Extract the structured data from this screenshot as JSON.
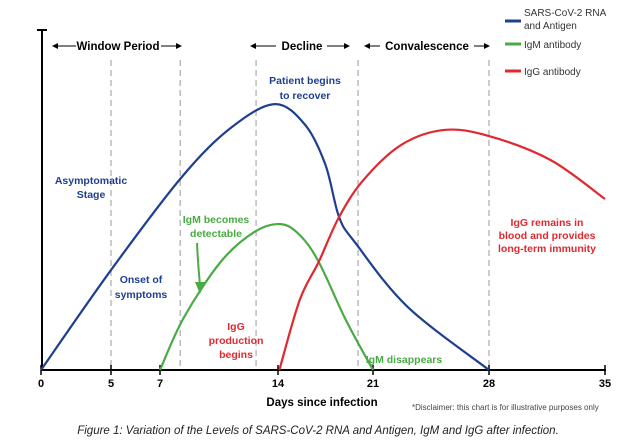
{
  "chart_data": {
    "type": "line",
    "xlabel": "Days since infection",
    "ylabel": "",
    "x_ticks": [
      0,
      5,
      7,
      14,
      21,
      28,
      35
    ],
    "xlim": [
      0,
      35
    ],
    "ylim": [
      0,
      100
    ],
    "grid": false,
    "legend_placement": "top-right",
    "colors": {
      "rna": "#1f3f8f",
      "igm": "#4aaa45",
      "igg": "#e0282e"
    },
    "series": [
      {
        "key": "rna",
        "name": "SARS-CoV-2 RNA and Antigen",
        "points": [
          [
            0,
            0
          ],
          [
            5,
            29.4
          ],
          [
            8.3,
            56.8
          ],
          [
            11.2,
            71.2
          ],
          [
            13.8,
            78.2
          ],
          [
            16.0,
            72.1
          ],
          [
            17.5,
            60.3
          ],
          [
            18.5,
            45
          ],
          [
            19.7,
            37.4
          ],
          [
            23.1,
            18.5
          ],
          [
            28,
            0
          ]
        ]
      },
      {
        "key": "igm",
        "name": "IgM antibody",
        "points": [
          [
            7,
            0
          ],
          [
            8.4,
            15.3
          ],
          [
            10.6,
            31.8
          ],
          [
            12.6,
            40.6
          ],
          [
            14.2,
            42.9
          ],
          [
            15.6,
            39.7
          ],
          [
            17.0,
            31.8
          ],
          [
            19.0,
            14.7
          ],
          [
            21,
            0
          ]
        ]
      },
      {
        "key": "igg",
        "name": "IgG antibody",
        "points": [
          [
            14.1,
            0
          ],
          [
            15.6,
            20.6
          ],
          [
            17.0,
            31.8
          ],
          [
            18.5,
            45
          ],
          [
            20.3,
            55.9
          ],
          [
            22.7,
            66.2
          ],
          [
            25.3,
            70.6
          ],
          [
            28,
            68.8
          ],
          [
            31.7,
            61.8
          ],
          [
            35,
            50.3
          ]
        ]
      }
    ],
    "period_markers_days": [
      5,
      8.2,
      12.7,
      19.9,
      28
    ],
    "periods": [
      {
        "label": "Window Period"
      },
      {
        "label": "Decline"
      },
      {
        "label": "Convalescence"
      }
    ],
    "annotations": {
      "patient_recover": [
        "Patient begins",
        "to recover"
      ],
      "asymptomatic": [
        "Asymptomatic",
        "Stage"
      ],
      "onset": [
        "Onset of",
        "symptoms"
      ],
      "igm_detectable": [
        "IgM becomes",
        "detectable"
      ],
      "igg_production": [
        "IgG",
        "production",
        "begins"
      ],
      "igm_disappears": "IgM disappears",
      "igg_remains": [
        "IgG remains in",
        "blood and provides",
        "long-term immunity"
      ]
    },
    "legend": [
      {
        "key": "rna",
        "lines": [
          "SARS-CoV-2 RNA",
          "and Antigen"
        ]
      },
      {
        "key": "igm",
        "lines": [
          "IgM antibody"
        ]
      },
      {
        "key": "igg",
        "lines": [
          "IgG antibody"
        ]
      }
    ]
  },
  "disclaimer": "*Disclaimer: this chart is for illustrative purposes only",
  "caption": "Figure 1: Variation of the Levels of SARS-CoV-2 RNA and Antigen, IgM and IgG after infection."
}
